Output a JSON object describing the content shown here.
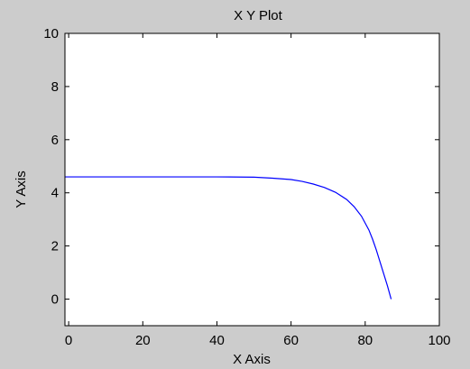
{
  "colors": {
    "figure_bg": "#cccccc",
    "axes_bg": "#ffffff",
    "line": "#0000ff",
    "axis": "#000000"
  },
  "chart_data": {
    "type": "line",
    "title": "X Y Plot",
    "xlabel": "X Axis",
    "ylabel": "Y Axis",
    "xlim": [
      -1,
      100
    ],
    "ylim": [
      -1,
      10
    ],
    "xticks": [
      0,
      20,
      40,
      60,
      80,
      100
    ],
    "yticks": [
      0,
      2,
      4,
      6,
      8,
      10
    ],
    "grid": false,
    "series": [
      {
        "color": "#0000ff",
        "x": [
          -1,
          0,
          10,
          20,
          30,
          40,
          50,
          55,
          60,
          63,
          66,
          69,
          72,
          75,
          77,
          79,
          81,
          82,
          83,
          84,
          85,
          86,
          87
        ],
        "y": [
          4.6,
          4.6,
          4.6,
          4.6,
          4.6,
          4.6,
          4.59,
          4.55,
          4.5,
          4.43,
          4.33,
          4.2,
          4.02,
          3.75,
          3.48,
          3.12,
          2.6,
          2.25,
          1.85,
          1.4,
          0.95,
          0.5,
          0.0
        ]
      }
    ]
  }
}
